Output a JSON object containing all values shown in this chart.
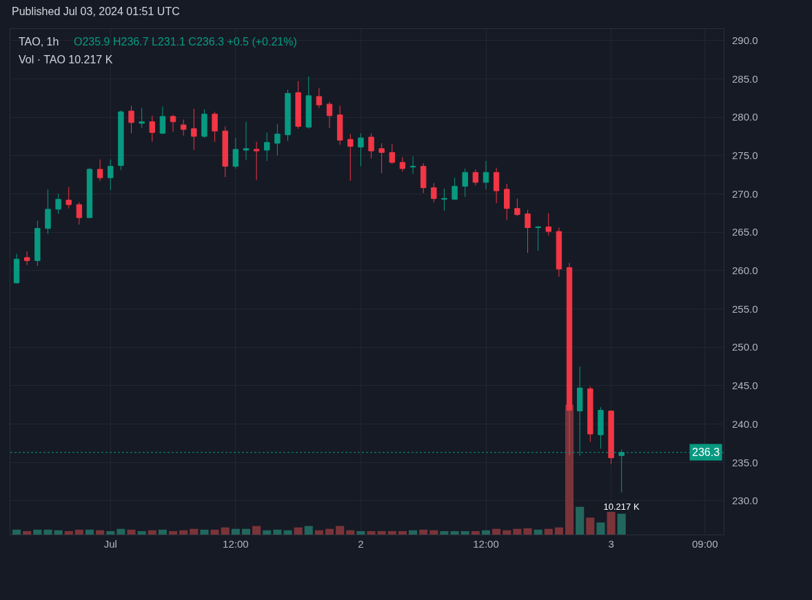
{
  "chart_data": {
    "type": "candlestick",
    "title": "TAO, 1h",
    "annotations": [
      "Published Jul 03, 2024 01:51 UTC",
      "O235.9 H236.7 L231.1 C236.3 +0.5 (+0.21%)",
      "Vol · TAO 10.217 K"
    ],
    "x": [
      "2024-06-30T15:00",
      "2024-06-30T16:00",
      "2024-06-30T17:00",
      "2024-06-30T18:00",
      "2024-06-30T19:00",
      "2024-06-30T20:00",
      "2024-06-30T21:00",
      "2024-06-30T22:00",
      "2024-06-30T23:00",
      "2024-07-01T00:00",
      "2024-07-01T01:00",
      "2024-07-01T02:00",
      "2024-07-01T03:00",
      "2024-07-01T04:00",
      "2024-07-01T05:00",
      "2024-07-01T06:00",
      "2024-07-01T07:00",
      "2024-07-01T08:00",
      "2024-07-01T09:00",
      "2024-07-01T10:00",
      "2024-07-01T11:00",
      "2024-07-01T12:00",
      "2024-07-01T13:00",
      "2024-07-01T14:00",
      "2024-07-01T15:00",
      "2024-07-01T16:00",
      "2024-07-01T17:00",
      "2024-07-01T18:00",
      "2024-07-01T19:00",
      "2024-07-01T20:00",
      "2024-07-01T21:00",
      "2024-07-01T22:00",
      "2024-07-01T23:00",
      "2024-07-02T00:00",
      "2024-07-02T01:00",
      "2024-07-02T02:00",
      "2024-07-02T03:00",
      "2024-07-02T04:00",
      "2024-07-02T05:00",
      "2024-07-02T06:00",
      "2024-07-02T07:00",
      "2024-07-02T08:00",
      "2024-07-02T09:00",
      "2024-07-02T10:00",
      "2024-07-02T11:00",
      "2024-07-02T12:00",
      "2024-07-02T13:00",
      "2024-07-02T14:00",
      "2024-07-02T15:00",
      "2024-07-02T16:00",
      "2024-07-02T17:00",
      "2024-07-02T18:00",
      "2024-07-02T19:00",
      "2024-07-02T20:00",
      "2024-07-02T21:00",
      "2024-07-02T22:00",
      "2024-07-02T23:00",
      "2024-07-03T00:00",
      "2024-07-03T01:00"
    ],
    "ohlc": [
      [
        258.4,
        262.2,
        258.3,
        261.5
      ],
      [
        261.7,
        262.5,
        260.7,
        261.3
      ],
      [
        261.3,
        266.5,
        260.6,
        265.5
      ],
      [
        265.5,
        270.6,
        264.8,
        268.0
      ],
      [
        268.0,
        270.0,
        267.4,
        269.3
      ],
      [
        269.2,
        270.9,
        268.1,
        268.6
      ],
      [
        268.6,
        268.9,
        266.0,
        266.9
      ],
      [
        266.9,
        273.4,
        266.9,
        273.2
      ],
      [
        273.2,
        274.5,
        271.7,
        272.1
      ],
      [
        272.1,
        274.5,
        270.5,
        273.6
      ],
      [
        273.7,
        280.9,
        273.1,
        280.7
      ],
      [
        280.8,
        281.5,
        277.9,
        279.3
      ],
      [
        279.2,
        281.2,
        278.6,
        279.4
      ],
      [
        279.4,
        280.2,
        276.8,
        278.0
      ],
      [
        277.9,
        281.4,
        277.8,
        280.1
      ],
      [
        280.1,
        280.3,
        278.1,
        279.4
      ],
      [
        279.0,
        279.7,
        277.6,
        278.4
      ],
      [
        278.5,
        281.1,
        275.7,
        277.5
      ],
      [
        277.5,
        281.0,
        277.3,
        280.4
      ],
      [
        280.4,
        280.7,
        276.8,
        278.2
      ],
      [
        278.2,
        278.8,
        272.2,
        273.6
      ],
      [
        273.6,
        277.3,
        273.3,
        275.8
      ],
      [
        275.7,
        279.4,
        274.4,
        275.9
      ],
      [
        275.8,
        276.8,
        271.8,
        275.6
      ],
      [
        275.7,
        278.0,
        274.3,
        276.7
      ],
      [
        276.6,
        279.1,
        275.0,
        277.8
      ],
      [
        277.7,
        283.6,
        276.9,
        283.1
      ],
      [
        283.2,
        284.7,
        278.5,
        278.8
      ],
      [
        278.7,
        285.3,
        278.5,
        282.8
      ],
      [
        282.7,
        283.8,
        281.2,
        281.6
      ],
      [
        281.7,
        282.0,
        278.6,
        280.2
      ],
      [
        280.3,
        281.5,
        276.4,
        277.0
      ],
      [
        277.1,
        277.8,
        271.7,
        276.2
      ],
      [
        276.1,
        277.9,
        273.6,
        277.3
      ],
      [
        277.4,
        277.9,
        274.6,
        275.6
      ],
      [
        275.9,
        276.6,
        272.7,
        275.4
      ],
      [
        275.4,
        276.5,
        273.9,
        274.1
      ],
      [
        274.1,
        274.8,
        272.9,
        273.3
      ],
      [
        273.5,
        274.9,
        272.6,
        273.6
      ],
      [
        273.6,
        274.0,
        270.1,
        270.8
      ],
      [
        270.8,
        271.4,
        268.9,
        269.4
      ],
      [
        269.3,
        270.7,
        267.8,
        269.4
      ],
      [
        269.3,
        272.1,
        269.3,
        271.0
      ],
      [
        271.0,
        273.3,
        269.6,
        272.8
      ],
      [
        272.8,
        273.2,
        271.1,
        271.5
      ],
      [
        271.5,
        274.3,
        270.6,
        272.8
      ],
      [
        272.8,
        273.4,
        268.8,
        270.4
      ],
      [
        270.6,
        271.3,
        266.6,
        268.1
      ],
      [
        268.1,
        269.4,
        267.1,
        267.3
      ],
      [
        267.4,
        267.9,
        262.3,
        265.6
      ],
      [
        265.6,
        265.8,
        262.6,
        265.7
      ],
      [
        265.7,
        267.5,
        264.6,
        265.1
      ],
      [
        265.1,
        265.6,
        259.2,
        260.2
      ],
      [
        260.4,
        261.0,
        235.9,
        241.8
      ],
      [
        241.7,
        247.5,
        235.9,
        244.7
      ],
      [
        244.6,
        244.9,
        237.7,
        238.7
      ],
      [
        238.6,
        242.2,
        236.8,
        241.8
      ],
      [
        241.7,
        241.8,
        234.8,
        235.6
      ],
      [
        235.9,
        236.7,
        231.1,
        236.3
      ]
    ],
    "colors": [
      "#089981",
      "#f23645",
      "#089981",
      "#089981",
      "#089981",
      "#f23645",
      "#f23645",
      "#089981",
      "#f23645",
      "#089981",
      "#089981",
      "#f23645",
      "#089981",
      "#f23645",
      "#089981",
      "#f23645",
      "#f23645",
      "#f23645",
      "#089981",
      "#f23645",
      "#f23645",
      "#089981",
      "#089981",
      "#f23645",
      "#089981",
      "#089981",
      "#089981",
      "#f23645",
      "#089981",
      "#f23645",
      "#f23645",
      "#f23645",
      "#f23645",
      "#089981",
      "#f23645",
      "#f23645",
      "#f23645",
      "#f23645",
      "#089981",
      "#f23645",
      "#f23645",
      "#089981",
      "#089981",
      "#089981",
      "#f23645",
      "#089981",
      "#f23645",
      "#f23645",
      "#f23645",
      "#f23645",
      "#089981",
      "#f23645",
      "#f23645",
      "#f23645",
      "#089981",
      "#f23645",
      "#089981",
      "#f23645",
      "#089981"
    ],
    "series": [
      {
        "type": "bar",
        "axis": "y2",
        "values": [
          2.4,
          1.7,
          2.4,
          2.4,
          2.1,
          1.7,
          2.4,
          2.4,
          2.1,
          1.7,
          2.8,
          2.4,
          1.7,
          2.1,
          2.4,
          1.7,
          2.1,
          2.8,
          2.4,
          2.4,
          3.5,
          2.8,
          2.8,
          4.2,
          2.1,
          2.4,
          2.1,
          3.5,
          4.2,
          2.1,
          2.8,
          4.2,
          2.1,
          1.7,
          1.7,
          1.7,
          1.7,
          1.7,
          2.1,
          2.4,
          2.1,
          1.7,
          1.7,
          1.7,
          1.7,
          2.1,
          2.8,
          2.1,
          2.8,
          3.1,
          2.4,
          2.8,
          3.5,
          63.7,
          13.6,
          8.3,
          5.9,
          11.1,
          10.217
        ],
        "colors": [
          "#22675e",
          "#7a3439",
          "#22675e",
          "#22675e",
          "#22675e",
          "#7a3439",
          "#7a3439",
          "#22675e",
          "#7a3439",
          "#22675e",
          "#22675e",
          "#7a3439",
          "#22675e",
          "#7a3439",
          "#22675e",
          "#7a3439",
          "#7a3439",
          "#7a3439",
          "#22675e",
          "#7a3439",
          "#7a3439",
          "#22675e",
          "#22675e",
          "#7a3439",
          "#22675e",
          "#22675e",
          "#22675e",
          "#7a3439",
          "#22675e",
          "#7a3439",
          "#7a3439",
          "#7a3439",
          "#7a3439",
          "#22675e",
          "#7a3439",
          "#7a3439",
          "#7a3439",
          "#7a3439",
          "#22675e",
          "#7a3439",
          "#7a3439",
          "#22675e",
          "#22675e",
          "#22675e",
          "#7a3439",
          "#22675e",
          "#7a3439",
          "#7a3439",
          "#7a3439",
          "#7a3439",
          "#22675e",
          "#7a3439",
          "#7a3439",
          "#7a3439",
          "#22675e",
          "#7a3439",
          "#22675e",
          "#7a3439",
          "#22675e"
        ],
        "value_labels": [
          null,
          null,
          null,
          null,
          null,
          null,
          null,
          null,
          null,
          null,
          null,
          null,
          null,
          null,
          null,
          null,
          null,
          null,
          null,
          null,
          null,
          null,
          null,
          null,
          null,
          null,
          null,
          null,
          null,
          null,
          null,
          null,
          null,
          null,
          null,
          null,
          null,
          null,
          null,
          null,
          null,
          null,
          null,
          null,
          null,
          null,
          null,
          null,
          null,
          null,
          null,
          null,
          null,
          null,
          null,
          null,
          null,
          null,
          "10.217 K"
        ]
      }
    ],
    "xlim": [
      "2024-06-30T14:24",
      "2024-07-03T10:48"
    ],
    "xticks": [
      {
        "value": "2024-07-01T00:00",
        "label": "Jul"
      },
      {
        "value": "2024-07-01T12:00",
        "label": "12:00"
      },
      {
        "value": "2024-07-02T00:00",
        "label": "2"
      },
      {
        "value": "2024-07-02T12:00",
        "label": "12:00"
      },
      {
        "value": "2024-07-03T00:00",
        "label": "3"
      },
      {
        "value": "2024-07-03T09:00",
        "label": "09:00"
      }
    ],
    "ylim": [
      225.6,
      291.5
    ],
    "yticks": [
      {
        "value": 230,
        "label": "230.0"
      },
      {
        "value": 235,
        "label": "235.0"
      },
      {
        "value": 240,
        "label": "240.0"
      },
      {
        "value": 245,
        "label": "245.0"
      },
      {
        "value": 250,
        "label": "250.0"
      },
      {
        "value": 255,
        "label": "255.0"
      },
      {
        "value": 260,
        "label": "260.0"
      },
      {
        "value": 265,
        "label": "265.0"
      },
      {
        "value": 270,
        "label": "270.0"
      },
      {
        "value": 275,
        "label": "275.0"
      },
      {
        "value": 280,
        "label": "280.0"
      },
      {
        "value": 285,
        "label": "285.0"
      },
      {
        "value": 290,
        "label": "290.0"
      }
    ],
    "y2lim": [
      0,
      248
    ],
    "ref_lines": [
      {
        "axis": "y",
        "value": 236.3,
        "label": "236.3",
        "color": "#089981",
        "line_style": "dotted"
      }
    ],
    "grid": true
  }
}
